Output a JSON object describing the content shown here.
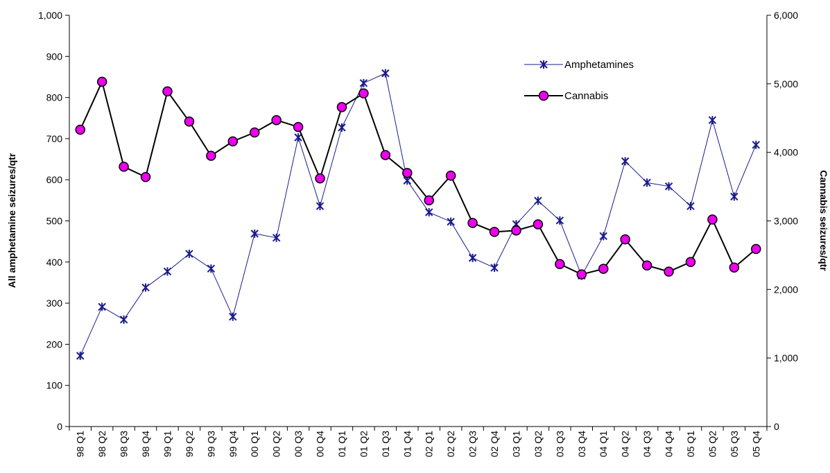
{
  "chart_data": {
    "type": "line",
    "title": "",
    "xlabel": "",
    "ylabel_left": "All amphetamine seizures/qtr",
    "ylabel_right": "Cannabis seizures/qtr",
    "ylim_left": [
      0,
      1000
    ],
    "ylim_right": [
      0,
      6000
    ],
    "yticks_left": [
      "0",
      "100",
      "200",
      "300",
      "400",
      "500",
      "600",
      "700",
      "800",
      "900",
      "1,000"
    ],
    "yticks_right": [
      "0",
      "1,000",
      "2,000",
      "3,000",
      "4,000",
      "5,000",
      "6,000"
    ],
    "grid": false,
    "legend_position": "top-right",
    "categories": [
      "98 Q1",
      "98 Q2",
      "98 Q3",
      "98 Q4",
      "99 Q1",
      "99 Q2",
      "99 Q3",
      "99 Q4",
      "00 Q1",
      "00 Q2",
      "00 Q3",
      "00 Q4",
      "01 Q1",
      "01 Q2",
      "01 Q3",
      "01 Q4",
      "02 Q1",
      "02 Q2",
      "02 Q3",
      "02 Q4",
      "03 Q1",
      "03 Q2",
      "03 Q3",
      "03 Q4",
      "04 Q1",
      "04 Q2",
      "04 Q3",
      "04 Q4",
      "05 Q1",
      "05 Q2",
      "05 Q3",
      "05 Q4"
    ],
    "series": [
      {
        "name": "Amphetamines",
        "axis": "left",
        "color": "#1a1a8c",
        "marker": "asterisk",
        "values": [
          172,
          291,
          260,
          338,
          377,
          420,
          384,
          267,
          469,
          459,
          703,
          536,
          727,
          835,
          859,
          598,
          521,
          498,
          410,
          386,
          492,
          549,
          501,
          367,
          463,
          645,
          593,
          584,
          536,
          745,
          559,
          685
        ]
      },
      {
        "name": "Cannabis",
        "axis": "right",
        "color": "#000000",
        "marker_fill": "#ee00ee",
        "marker": "circle",
        "values": [
          4330,
          5030,
          3790,
          3640,
          4890,
          4450,
          3950,
          4160,
          4290,
          4470,
          4370,
          3620,
          4660,
          4860,
          3960,
          3700,
          3300,
          3660,
          2970,
          2840,
          2860,
          2950,
          2370,
          2220,
          2300,
          2730,
          2350,
          2260,
          2400,
          3020,
          2320,
          2590
        ]
      }
    ]
  }
}
